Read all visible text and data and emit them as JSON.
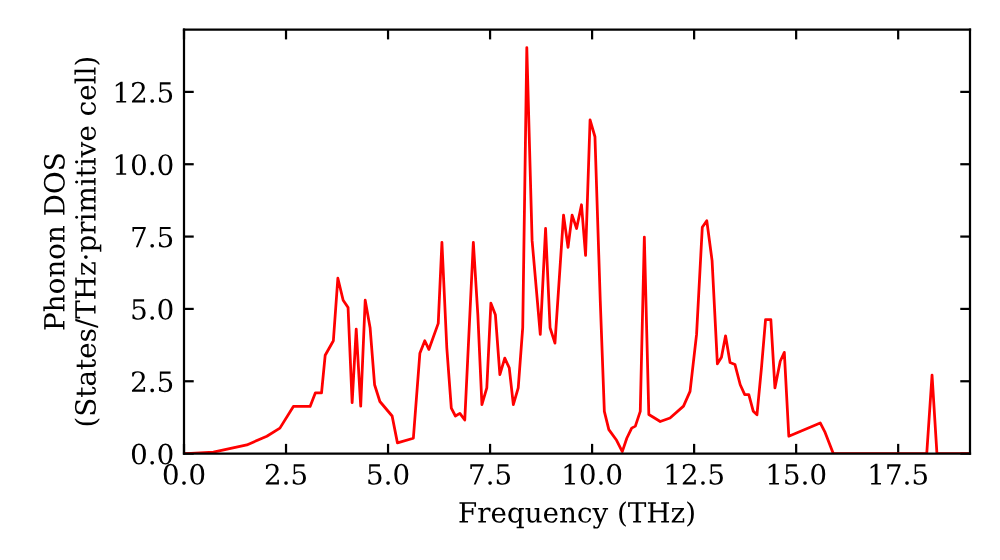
{
  "chart_data": {
    "type": "line",
    "xlabel": "Frequency (THz)",
    "ylabel": "Phonon DOS\n(States/THz·primitive cell)",
    "x": [
      0.06,
      0.72,
      1.54,
      2.03,
      2.35,
      2.68,
      3.09,
      3.22,
      3.37,
      3.46,
      3.66,
      3.77,
      3.9,
      4.02,
      4.12,
      4.22,
      4.33,
      4.44,
      4.56,
      4.67,
      4.8,
      5.1,
      5.23,
      5.62,
      5.78,
      5.9,
      6.0,
      6.23,
      6.32,
      6.44,
      6.55,
      6.65,
      6.76,
      6.88,
      7.09,
      7.2,
      7.3,
      7.42,
      7.52,
      7.63,
      7.74,
      7.86,
      7.97,
      8.07,
      8.19,
      8.3,
      8.4,
      8.53,
      8.73,
      8.86,
      8.97,
      9.09,
      9.3,
      9.41,
      9.51,
      9.62,
      9.74,
      9.84,
      9.95,
      10.07,
      10.2,
      10.3,
      10.41,
      10.6,
      10.74,
      10.85,
      10.97,
      11.06,
      11.18,
      11.28,
      11.39,
      11.67,
      11.91,
      12.24,
      12.4,
      12.56,
      12.7,
      12.81,
      12.94,
      13.07,
      13.17,
      13.27,
      13.38,
      13.5,
      13.63,
      13.74,
      13.84,
      13.95,
      14.04,
      14.15,
      14.25,
      14.38,
      14.48,
      14.61,
      14.71,
      14.82,
      15.59,
      15.7,
      15.91,
      18.2,
      18.33,
      18.45,
      19.26
    ],
    "series": [
      {
        "color": "#ff0000",
        "values": [
          0,
          0.05,
          0.3,
          0.6,
          0.88,
          1.63,
          1.63,
          2.1,
          2.1,
          3.4,
          3.9,
          6.06,
          5.3,
          5.05,
          1.76,
          4.3,
          1.64,
          5.3,
          4.35,
          2.38,
          1.8,
          1.3,
          0.37,
          0.53,
          3.47,
          3.9,
          3.6,
          4.5,
          7.3,
          3.65,
          1.57,
          1.3,
          1.39,
          1.16,
          7.3,
          4.8,
          1.69,
          2.27,
          5.2,
          4.8,
          2.73,
          3.3,
          2.96,
          1.69,
          2.27,
          4.35,
          14.03,
          7.36,
          4.12,
          7.78,
          4.35,
          3.82,
          8.24,
          7.13,
          8.24,
          7.78,
          8.6,
          6.85,
          11.53,
          10.95,
          5.28,
          1.46,
          0.83,
          0.46,
          0.07,
          0.53,
          0.88,
          0.95,
          1.46,
          7.48,
          1.35,
          1.11,
          1.23,
          1.64,
          2.15,
          4.12,
          7.82,
          8.05,
          6.67,
          3.1,
          3.33,
          4.07,
          3.15,
          3.08,
          2.38,
          2.04,
          2.04,
          1.46,
          1.34,
          2.96,
          4.63,
          4.63,
          2.27,
          3.19,
          3.5,
          0.6,
          1.06,
          0.76,
          0,
          0,
          2.71,
          0,
          0
        ]
      }
    ],
    "xlim": [
      0,
      19.26
    ],
    "ylim": [
      0,
      14.65
    ],
    "xticks": [
      {
        "value": 0,
        "label": "0.0"
      },
      2.5,
      {
        "value": 5,
        "label": "5.0"
      },
      7.5,
      {
        "value": 10,
        "label": "10.0"
      },
      12.5,
      {
        "value": 15,
        "label": "15.0"
      },
      17.5
    ],
    "yticks": [
      {
        "value": 0,
        "label": "0.0"
      },
      2.5,
      {
        "value": 5,
        "label": "5.0"
      },
      7.5,
      {
        "value": 10,
        "label": "10.0"
      },
      12.5
    ],
    "grid": false,
    "marker": "none",
    "line_style": "solid"
  }
}
